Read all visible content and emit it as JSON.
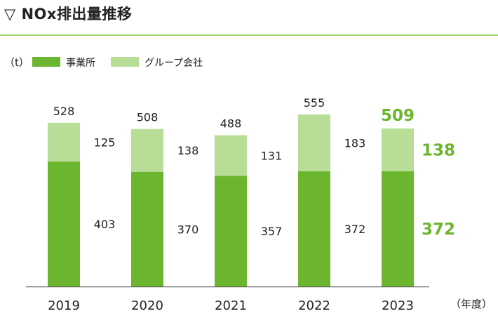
{
  "title": "▽ NOx排出量推移",
  "chart_data": {
    "type": "bar",
    "stacked": true,
    "unit_label": "（t）",
    "x_unit_label": "（年度）",
    "categories": [
      "2019",
      "2020",
      "2021",
      "2022",
      "2023"
    ],
    "series": [
      {
        "name": "事業所",
        "values": [
          403,
          370,
          357,
          372,
          372
        ],
        "color": "#6cb52e"
      },
      {
        "name": "グループ会社",
        "values": [
          125,
          138,
          131,
          183,
          138
        ],
        "color": "#b8dd97"
      }
    ],
    "totals": [
      528,
      508,
      488,
      555,
      509
    ],
    "highlight_category": "2023",
    "highlight_color": "#6cb52e",
    "label_color": "#222222",
    "axis_color": "#555555",
    "ylim": [
      0,
      555
    ],
    "legend_position": "top-left",
    "grid": false
  }
}
